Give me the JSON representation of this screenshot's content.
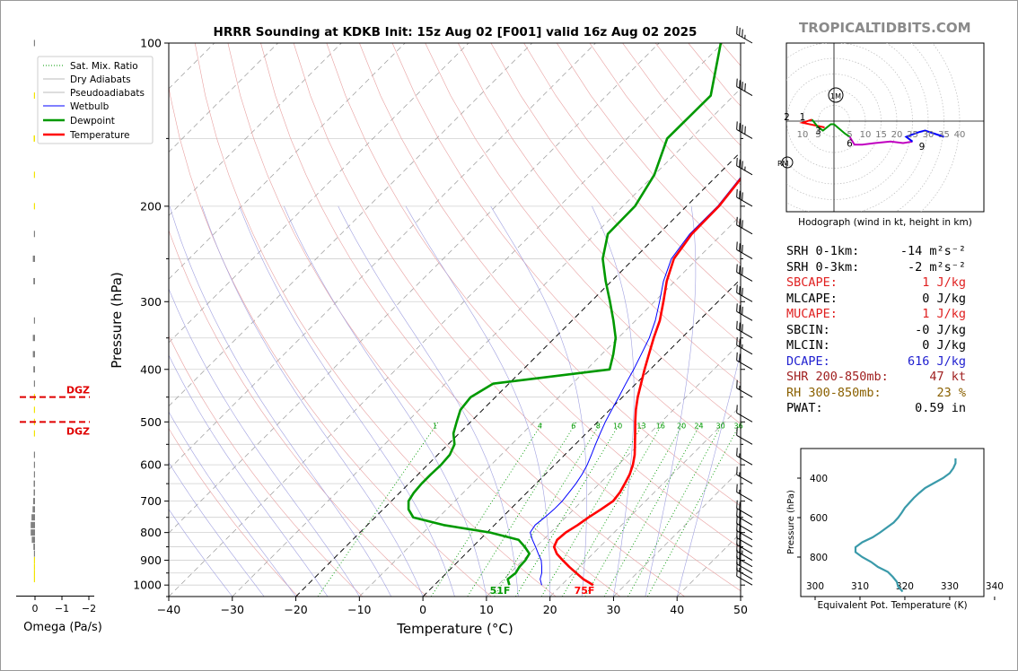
{
  "page": {
    "title": "HRRR Sounding at KDKB Init: 15z Aug 02 [F001] valid 16z Aug 02 2025",
    "watermark": "TROPICALTIDBITS.COM"
  },
  "omega": {
    "xlabel": "Omega (Pa/s)",
    "ticks": [
      "0",
      "−1",
      "−2"
    ],
    "dgz_top_label": "DGZ",
    "dgz_bottom_label": "DGZ",
    "dgz_pressures": [
      450,
      500
    ],
    "bars": [
      {
        "p": 100,
        "v": 0.02,
        "color": "#808080"
      },
      {
        "p": 125,
        "v": 0.02,
        "color": "#f2e400"
      },
      {
        "p": 150,
        "v": 0.05,
        "color": "#f2e400"
      },
      {
        "p": 175,
        "v": 0.04,
        "color": "#f2e400"
      },
      {
        "p": 200,
        "v": 0.02,
        "color": "#f2e400"
      },
      {
        "p": 225,
        "v": 0.02,
        "color": "#808080"
      },
      {
        "p": 250,
        "v": 0.08,
        "color": "#808080"
      },
      {
        "p": 275,
        "v": 0.06,
        "color": "#808080"
      },
      {
        "p": 325,
        "v": 0.02,
        "color": "#808080"
      },
      {
        "p": 350,
        "v": 0.08,
        "color": "#808080"
      },
      {
        "p": 375,
        "v": 0.08,
        "color": "#808080"
      },
      {
        "p": 400,
        "v": 0.06,
        "color": "#808080"
      },
      {
        "p": 425,
        "v": 0.04,
        "color": "#808080"
      },
      {
        "p": 450,
        "v": 0.03,
        "color": "#f2e400"
      },
      {
        "p": 475,
        "v": 0.03,
        "color": "#f2e400"
      },
      {
        "p": 500,
        "v": 0.03,
        "color": "#f2e400"
      },
      {
        "p": 525,
        "v": 0.02,
        "color": "#f2e400"
      },
      {
        "p": 575,
        "v": 0.02,
        "color": "#808080"
      },
      {
        "p": 600,
        "v": 0.04,
        "color": "#808080"
      },
      {
        "p": 625,
        "v": 0.04,
        "color": "#808080"
      },
      {
        "p": 650,
        "v": 0.05,
        "color": "#808080"
      },
      {
        "p": 675,
        "v": 0.05,
        "color": "#808080"
      },
      {
        "p": 700,
        "v": 0.07,
        "color": "#808080"
      },
      {
        "p": 725,
        "v": 0.09,
        "color": "#808080"
      },
      {
        "p": 750,
        "v": 0.13,
        "color": "#808080"
      },
      {
        "p": 775,
        "v": 0.16,
        "color": "#808080"
      },
      {
        "p": 800,
        "v": 0.16,
        "color": "#808080"
      },
      {
        "p": 825,
        "v": 0.12,
        "color": "#808080"
      },
      {
        "p": 850,
        "v": 0.06,
        "color": "#808080"
      },
      {
        "p": 875,
        "v": 0.03,
        "color": "#808080"
      },
      {
        "p": 900,
        "v": 0.02,
        "color": "#f2e400"
      },
      {
        "p": 925,
        "v": 0.02,
        "color": "#f2e400"
      },
      {
        "p": 950,
        "v": 0.02,
        "color": "#f2e400"
      },
      {
        "p": 975,
        "v": 0.02,
        "color": "#f2e400"
      }
    ]
  },
  "chart_data": {
    "type": "line",
    "title": "HRRR Sounding at KDKB Init: 15z Aug 02 [F001] valid 16z Aug 02 2025",
    "xlabel": "Temperature (°C)",
    "ylabel": "Pressure (hPa)",
    "xlim": [
      -40,
      50
    ],
    "ylim": [
      1050,
      100
    ],
    "y_scale": "log",
    "x_ticks": [
      -40,
      -30,
      -20,
      -10,
      0,
      10,
      20,
      30,
      40,
      50
    ],
    "y_ticks": [
      100,
      200,
      300,
      400,
      500,
      600,
      700,
      800,
      900,
      1000
    ],
    "grid": true,
    "legend": [
      "Sat. Mix. Ratio",
      "Dry Adiabats",
      "Pseudoadiabats",
      "Wetbulb",
      "Dewpoint",
      "Temperature"
    ],
    "legend_position": "upper-left",
    "mixing_ratio_labels": [
      "1",
      "4",
      "6",
      "8",
      "10",
      "13",
      "16",
      "20",
      "24",
      "30",
      "36"
    ],
    "mixing_ratios": [
      1,
      4,
      6,
      8,
      10,
      13,
      16,
      20,
      24,
      30,
      36
    ],
    "series": [
      {
        "name": "Temperature",
        "color": "#ff0000",
        "points": [
          [
            1000,
            25.0
          ],
          [
            975,
            22.5
          ],
          [
            950,
            20.4
          ],
          [
            925,
            18.3
          ],
          [
            900,
            16.3
          ],
          [
            875,
            14.3
          ],
          [
            850,
            12.8
          ],
          [
            825,
            12.2
          ],
          [
            800,
            12.4
          ],
          [
            775,
            13.1
          ],
          [
            750,
            13.6
          ],
          [
            725,
            14.3
          ],
          [
            700,
            14.9
          ],
          [
            675,
            14.6
          ],
          [
            650,
            14.0
          ],
          [
            625,
            13.3
          ],
          [
            600,
            12.3
          ],
          [
            575,
            11.0
          ],
          [
            550,
            9.4
          ],
          [
            525,
            7.7
          ],
          [
            500,
            5.9
          ],
          [
            475,
            4.1
          ],
          [
            450,
            2.4
          ],
          [
            425,
            0.8
          ],
          [
            400,
            -0.9
          ],
          [
            375,
            -2.6
          ],
          [
            350,
            -4.4
          ],
          [
            325,
            -6.2
          ],
          [
            300,
            -8.6
          ],
          [
            275,
            -11.3
          ],
          [
            250,
            -13.7
          ],
          [
            225,
            -14.8
          ],
          [
            200,
            -14.9
          ],
          [
            175,
            -15.9
          ],
          [
            150,
            -18.1
          ],
          [
            125,
            -21.0
          ],
          [
            100,
            -18.6
          ]
        ]
      },
      {
        "name": "Dewpoint",
        "color": "#009900",
        "points": [
          [
            1000,
            11.8
          ],
          [
            975,
            10.6
          ],
          [
            950,
            10.9
          ],
          [
            925,
            10.5
          ],
          [
            900,
            10.4
          ],
          [
            875,
            10.0
          ],
          [
            850,
            8.2
          ],
          [
            825,
            6.1
          ],
          [
            800,
            0.5
          ],
          [
            775,
            -8.0
          ],
          [
            750,
            -14.0
          ],
          [
            725,
            -16.0
          ],
          [
            700,
            -17.3
          ],
          [
            675,
            -17.8
          ],
          [
            650,
            -18.0
          ],
          [
            625,
            -18.0
          ],
          [
            600,
            -17.9
          ],
          [
            575,
            -18.1
          ],
          [
            550,
            -19.0
          ],
          [
            525,
            -20.9
          ],
          [
            500,
            -22.2
          ],
          [
            475,
            -23.5
          ],
          [
            450,
            -23.9
          ],
          [
            425,
            -22.5
          ],
          [
            400,
            -6.4
          ],
          [
            375,
            -8.2
          ],
          [
            350,
            -10.4
          ],
          [
            325,
            -13.5
          ],
          [
            300,
            -17.0
          ],
          [
            275,
            -20.9
          ],
          [
            250,
            -24.9
          ],
          [
            225,
            -28.0
          ],
          [
            200,
            -28.1
          ],
          [
            175,
            -30.0
          ],
          [
            150,
            -33.7
          ],
          [
            125,
            -33.6
          ],
          [
            100,
            -40.3
          ]
        ]
      },
      {
        "name": "Wetbulb",
        "color": "#0000ff",
        "points": [
          [
            1000,
            16.9
          ],
          [
            975,
            15.7
          ],
          [
            950,
            15.0
          ],
          [
            925,
            14.0
          ],
          [
            900,
            12.9
          ],
          [
            875,
            11.4
          ],
          [
            850,
            9.9
          ],
          [
            825,
            8.3
          ],
          [
            800,
            6.8
          ],
          [
            775,
            6.4
          ],
          [
            750,
            6.7
          ],
          [
            725,
            6.9
          ],
          [
            700,
            6.9
          ],
          [
            675,
            6.6
          ],
          [
            650,
            6.3
          ],
          [
            625,
            5.8
          ],
          [
            600,
            5.1
          ],
          [
            575,
            4.2
          ],
          [
            550,
            3.2
          ],
          [
            525,
            2.2
          ],
          [
            500,
            1.2
          ],
          [
            475,
            0.3
          ],
          [
            450,
            -0.6
          ],
          [
            425,
            -1.6
          ],
          [
            400,
            -2.6
          ],
          [
            375,
            -3.8
          ],
          [
            350,
            -5.1
          ],
          [
            325,
            -6.9
          ],
          [
            300,
            -9.2
          ],
          [
            275,
            -11.8
          ],
          [
            250,
            -14.1
          ],
          [
            225,
            -15.1
          ],
          [
            200,
            -15.1
          ],
          [
            175,
            -16.1
          ],
          [
            150,
            -18.3
          ],
          [
            125,
            -21.2
          ],
          [
            100,
            -18.8
          ]
        ]
      }
    ],
    "surface_labels": {
      "dewpoint": "51F",
      "temperature": "75F"
    },
    "wind_barbs": [
      {
        "p": 1000,
        "speed_kt": 10
      },
      {
        "p": 975,
        "speed_kt": 15
      },
      {
        "p": 950,
        "speed_kt": 20
      },
      {
        "p": 925,
        "speed_kt": 20
      },
      {
        "p": 900,
        "speed_kt": 25
      },
      {
        "p": 875,
        "speed_kt": 20
      },
      {
        "p": 850,
        "speed_kt": 20
      },
      {
        "p": 825,
        "speed_kt": 20
      },
      {
        "p": 800,
        "speed_kt": 20
      },
      {
        "p": 775,
        "speed_kt": 20
      },
      {
        "p": 750,
        "speed_kt": 20
      },
      {
        "p": 700,
        "speed_kt": 15
      },
      {
        "p": 650,
        "speed_kt": 15
      },
      {
        "p": 600,
        "speed_kt": 15
      },
      {
        "p": 550,
        "speed_kt": 10
      },
      {
        "p": 500,
        "speed_kt": 10
      },
      {
        "p": 450,
        "speed_kt": 15
      },
      {
        "p": 400,
        "speed_kt": 20
      },
      {
        "p": 375,
        "speed_kt": 25
      },
      {
        "p": 350,
        "speed_kt": 30
      },
      {
        "p": 325,
        "speed_kt": 30
      },
      {
        "p": 300,
        "speed_kt": 30
      },
      {
        "p": 275,
        "speed_kt": 30
      },
      {
        "p": 250,
        "speed_kt": 30
      },
      {
        "p": 225,
        "speed_kt": 30
      },
      {
        "p": 200,
        "speed_kt": 30
      },
      {
        "p": 175,
        "speed_kt": 35
      },
      {
        "p": 150,
        "speed_kt": 40
      },
      {
        "p": 125,
        "speed_kt": 40
      },
      {
        "p": 100,
        "speed_kt": 35
      }
    ]
  },
  "hodograph": {
    "caption": "Hodograph (wind in kt, height in km)",
    "ring_labels": [
      "10",
      "5",
      "5",
      "10",
      "15",
      "20",
      "25",
      "30",
      "35",
      "40"
    ],
    "ring_values_kt": [
      -10,
      -5,
      5,
      10,
      15,
      20,
      25,
      30,
      35,
      40
    ],
    "storm_motion_labels": [
      "1M",
      "RM"
    ],
    "height_labels": [
      "2",
      "1",
      "3",
      "6",
      "9"
    ],
    "segments": [
      {
        "color": "#ff0000",
        "points": [
          [
            -3,
            -2
          ],
          [
            -10,
            -0.5
          ],
          [
            -7,
            0.5
          ]
        ]
      },
      {
        "color": "#009900",
        "points": [
          [
            -7,
            0.5
          ],
          [
            -5,
            -2
          ],
          [
            -3.5,
            -3
          ],
          [
            -1,
            -1
          ],
          [
            0,
            -1
          ],
          [
            3.5,
            -4
          ],
          [
            5,
            -5
          ]
        ]
      },
      {
        "color": "#c000c0",
        "points": [
          [
            5,
            -5
          ],
          [
            6.5,
            -7.5
          ],
          [
            9,
            -7.5
          ],
          [
            13,
            -7
          ],
          [
            18,
            -6.5
          ],
          [
            22,
            -7
          ],
          [
            25,
            -6.5
          ]
        ]
      },
      {
        "color": "#0000ff",
        "points": [
          [
            25,
            -6.5
          ],
          [
            23,
            -5
          ],
          [
            27,
            -3.5
          ],
          [
            29,
            -3
          ],
          [
            35,
            -5
          ]
        ]
      }
    ]
  },
  "parameters": [
    {
      "label": "SRH 0-1km:",
      "value": "-14 m²s⁻²",
      "color": "#000000"
    },
    {
      "label": "SRH 0-3km:",
      "value": "-2 m²s⁻²",
      "color": "#000000"
    },
    {
      "label": "SBCAPE:",
      "value": "1 J/kg",
      "color": "#e02020"
    },
    {
      "label": "MLCAPE:",
      "value": "0 J/kg",
      "color": "#000000"
    },
    {
      "label": "MUCAPE:",
      "value": "1 J/kg",
      "color": "#e02020"
    },
    {
      "label": "SBCIN:",
      "value": "-0 J/kg",
      "color": "#000000"
    },
    {
      "label": "MLCIN:",
      "value": "0 J/kg",
      "color": "#000000"
    },
    {
      "label": "DCAPE:",
      "value": "616 J/kg",
      "color": "#2020d0"
    },
    {
      "label": "SHR 200-850mb:",
      "value": "47 kt",
      "color": "#a02020"
    },
    {
      "label": "RH 300-850mb:",
      "value": "23 %",
      "color": "#8a6000"
    },
    {
      "label": "PWAT:",
      "value": "0.59 in",
      "color": "#000000"
    }
  ],
  "theta_e": {
    "xlabel": "Equivalent Pot. Temperature (K)",
    "ylabel": "Pressure (hPa)",
    "xlim": [
      300,
      340
    ],
    "x_ticks": [
      "300",
      "310",
      "320",
      "330",
      "340"
    ],
    "y_ticks": [
      "400",
      "600",
      "800"
    ],
    "color": "#3a9aaa",
    "points": [
      [
        975,
        319.5
      ],
      [
        950,
        318.5
      ],
      [
        925,
        318.2
      ],
      [
        900,
        317.3
      ],
      [
        875,
        316.2
      ],
      [
        850,
        314.0
      ],
      [
        825,
        312.5
      ],
      [
        800,
        310.5
      ],
      [
        775,
        309.0
      ],
      [
        750,
        309.0
      ],
      [
        725,
        310.5
      ],
      [
        700,
        312.8
      ],
      [
        675,
        314.5
      ],
      [
        650,
        316.0
      ],
      [
        625,
        317.5
      ],
      [
        600,
        318.5
      ],
      [
        575,
        319.3
      ],
      [
        550,
        320.0
      ],
      [
        525,
        321.0
      ],
      [
        500,
        322.0
      ],
      [
        475,
        323.2
      ],
      [
        450,
        324.5
      ],
      [
        425,
        326.5
      ],
      [
        400,
        328.5
      ],
      [
        375,
        330.0
      ],
      [
        350,
        330.8
      ],
      [
        325,
        331.3
      ],
      [
        300,
        331.3
      ]
    ]
  }
}
